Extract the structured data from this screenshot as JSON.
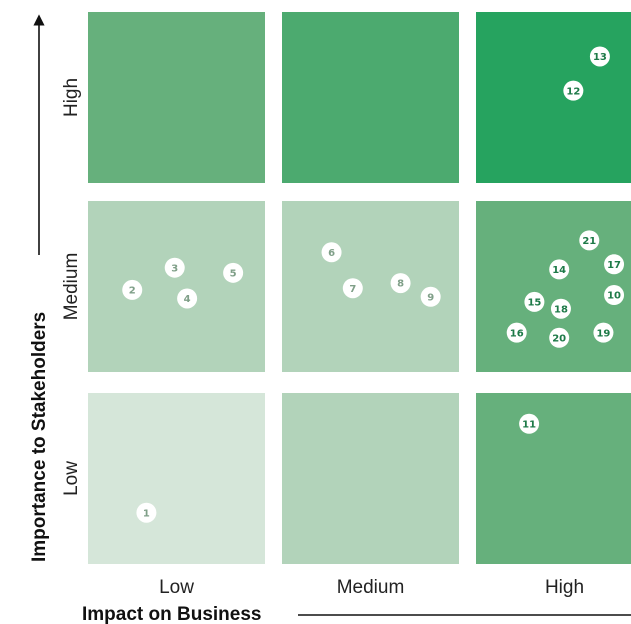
{
  "chart_data": {
    "type": "scatter",
    "title": "",
    "xlabel": "Impact on Business",
    "ylabel": "Importance to Stakeholders",
    "x_categories": [
      "Low",
      "Medium",
      "High"
    ],
    "y_categories": [
      "Low",
      "Medium",
      "High"
    ],
    "xlim": [
      0,
      3
    ],
    "ylim": [
      0,
      3
    ],
    "cell_colors": [
      [
        "#d5e6d9",
        "#b2d3ba",
        "#66b07c"
      ],
      [
        "#b2d3ba",
        "#b2d3ba",
        "#66b07c"
      ],
      [
        "#66b07c",
        "#4caa6f",
        "#26a35f"
      ]
    ],
    "points": [
      {
        "label": "1",
        "x": 0.33,
        "y": 0.3
      },
      {
        "label": "2",
        "x": 0.25,
        "y": 1.48
      },
      {
        "label": "3",
        "x": 0.49,
        "y": 1.61
      },
      {
        "label": "4",
        "x": 0.56,
        "y": 1.43
      },
      {
        "label": "5",
        "x": 0.82,
        "y": 1.58
      },
      {
        "label": "6",
        "x": 1.28,
        "y": 1.7
      },
      {
        "label": "7",
        "x": 1.4,
        "y": 1.49
      },
      {
        "label": "8",
        "x": 1.67,
        "y": 1.52
      },
      {
        "label": "9",
        "x": 1.84,
        "y": 1.44
      },
      {
        "label": "10",
        "x": 2.78,
        "y": 1.45
      },
      {
        "label": "11",
        "x": 2.3,
        "y": 0.82
      },
      {
        "label": "12",
        "x": 2.55,
        "y": 2.54
      },
      {
        "label": "13",
        "x": 2.7,
        "y": 2.74
      },
      {
        "label": "14",
        "x": 2.47,
        "y": 1.6
      },
      {
        "label": "15",
        "x": 2.33,
        "y": 1.41
      },
      {
        "label": "16",
        "x": 2.23,
        "y": 1.23
      },
      {
        "label": "17",
        "x": 2.78,
        "y": 1.63
      },
      {
        "label": "18",
        "x": 2.48,
        "y": 1.37
      },
      {
        "label": "19",
        "x": 2.72,
        "y": 1.23
      },
      {
        "label": "20",
        "x": 2.47,
        "y": 1.2
      },
      {
        "label": "21",
        "x": 2.64,
        "y": 1.77
      }
    ]
  }
}
